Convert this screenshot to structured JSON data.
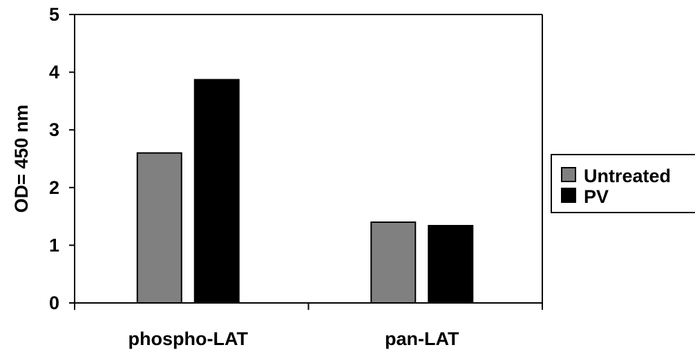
{
  "chart_data": {
    "type": "bar",
    "categories": [
      "phospho-LAT",
      "pan-LAT"
    ],
    "series": [
      {
        "name": "Untreated",
        "color": "#808080",
        "values": [
          2.6,
          1.4
        ]
      },
      {
        "name": "PV",
        "color": "#000000",
        "values": [
          3.87,
          1.34
        ]
      }
    ],
    "xlabel": "",
    "ylabel": "OD= 450 nm",
    "ylim": [
      0,
      5
    ],
    "yticks": [
      "0",
      "1",
      "2",
      "3",
      "4",
      "5"
    ],
    "grid": false,
    "legend_position": "right"
  }
}
